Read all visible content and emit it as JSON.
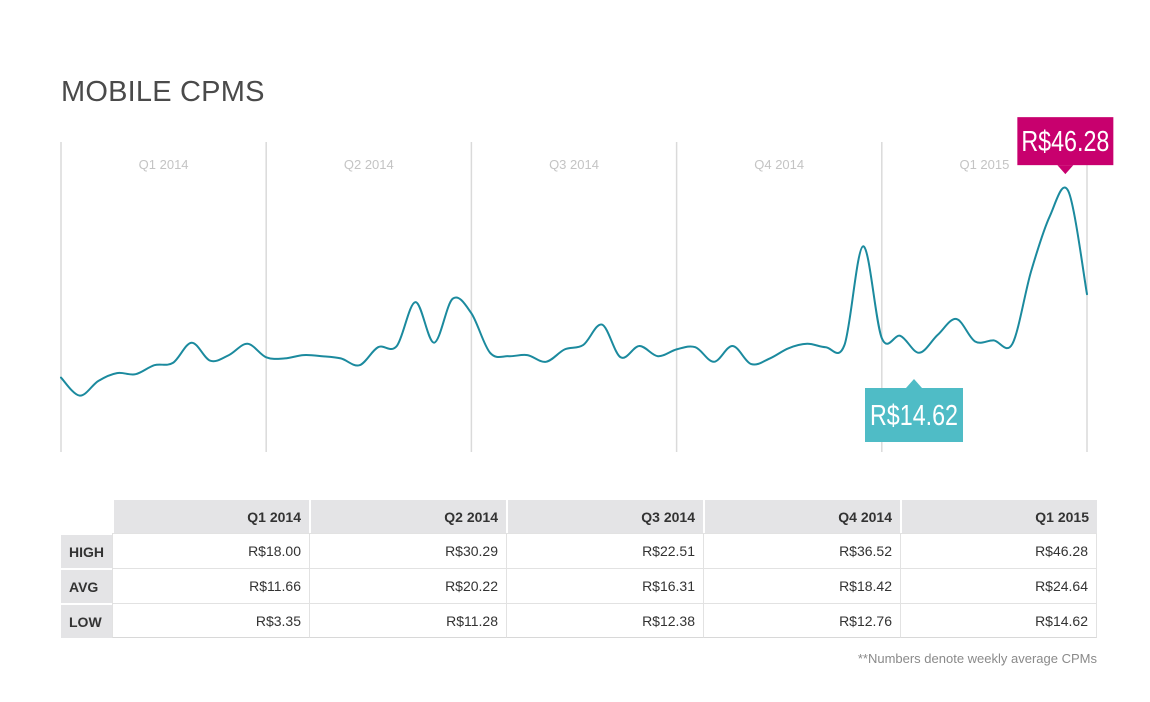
{
  "page_title": "MOBILE CPMS",
  "footnote": "**Numbers denote weekly average CPMs",
  "chart_data": {
    "type": "line",
    "title": "MOBILE CPMS",
    "xlabel": "",
    "ylabel": "",
    "quarters": [
      "Q1 2014",
      "Q2 2014",
      "Q3 2014",
      "Q4 2014",
      "Q1 2015"
    ],
    "ylim": [
      0,
      55
    ],
    "grid": "vertical quarter dividers",
    "line_color": "#1b8a9e",
    "series": [
      {
        "values": [
          13.2,
          10.0,
          12.6,
          14.0,
          13.8,
          15.4,
          15.8,
          19.4,
          16.2,
          17.2,
          19.2,
          16.8,
          16.6,
          17.2,
          17.0,
          16.6,
          15.4,
          18.6,
          18.8,
          26.6,
          19.4,
          27.2,
          24.6,
          17.6,
          17.0,
          17.2,
          16.0,
          18.2,
          19.0,
          22.6,
          16.8,
          18.8,
          17.0,
          18.2,
          18.6,
          16.0,
          18.8,
          15.6,
          16.6,
          18.4,
          19.2,
          18.6,
          19.0,
          36.5,
          20.2,
          20.6,
          17.6,
          20.8,
          23.6,
          19.6,
          19.8,
          19.2,
          32.0,
          41.8,
          46.28,
          28.0
        ]
      }
    ],
    "callouts": [
      {
        "label": "R$46.28",
        "value": 46.28,
        "color": "#c8006e"
      },
      {
        "label": "R$14.62",
        "value": 14.62,
        "color": "#4fbcc6"
      }
    ]
  },
  "table": {
    "columns": [
      "Q1 2014",
      "Q2 2014",
      "Q3 2014",
      "Q4 2014",
      "Q1 2015"
    ],
    "rows": [
      {
        "label": "HIGH",
        "values": [
          "R$18.00",
          "R$30.29",
          "R$22.51",
          "R$36.52",
          "R$46.28"
        ]
      },
      {
        "label": "AVG",
        "values": [
          "R$11.66",
          "R$20.22",
          "R$16.31",
          "R$18.42",
          "R$24.64"
        ]
      },
      {
        "label": "LOW",
        "values": [
          "R$3.35",
          "R$11.28",
          "R$12.38",
          "R$12.76",
          "R$14.62"
        ]
      }
    ]
  }
}
